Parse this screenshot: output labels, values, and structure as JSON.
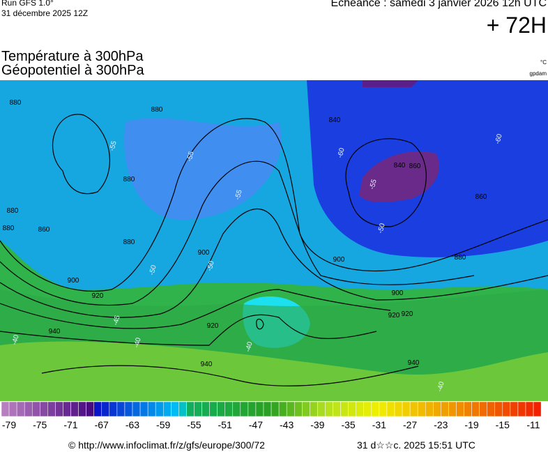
{
  "header": {
    "run": "Run GFS 1.0°",
    "run_date": "31 décembre 2025 12Z",
    "valid": "Echéance : samedi 3 janvier 2026 12h UTC",
    "lead": "+ 72H",
    "title1": "Température à 300hPa",
    "title2": "Géopotentiel à 300hPa",
    "unit1": "°C",
    "unit2": "gpdam"
  },
  "map": {
    "contour_labels": [
      "880",
      "880",
      "880",
      "900",
      "880",
      "900",
      "920",
      "940",
      "920",
      "940",
      "880",
      "860",
      "880",
      "900",
      "920",
      "840",
      "860",
      "880",
      "900",
      "920",
      "940",
      "860",
      "840",
      "-55",
      "-55",
      "-50",
      "-50",
      "-45",
      "-40",
      "-40",
      "-60",
      "-55",
      "-50",
      "-40",
      "-40",
      "-55",
      "-60"
    ]
  },
  "colorbar": {
    "ticks": [
      -79,
      -75,
      -71,
      -67,
      -63,
      -59,
      -55,
      -51,
      -47,
      -43,
      -39,
      -35,
      -31,
      -27,
      -23,
      -19,
      -15,
      -11
    ]
  },
  "footer": {
    "source": "© http://www.infoclimat.fr/z/gfs/europe/300/72",
    "timestamp": "31 d☆☆c. 2025 15:51 UTC"
  }
}
